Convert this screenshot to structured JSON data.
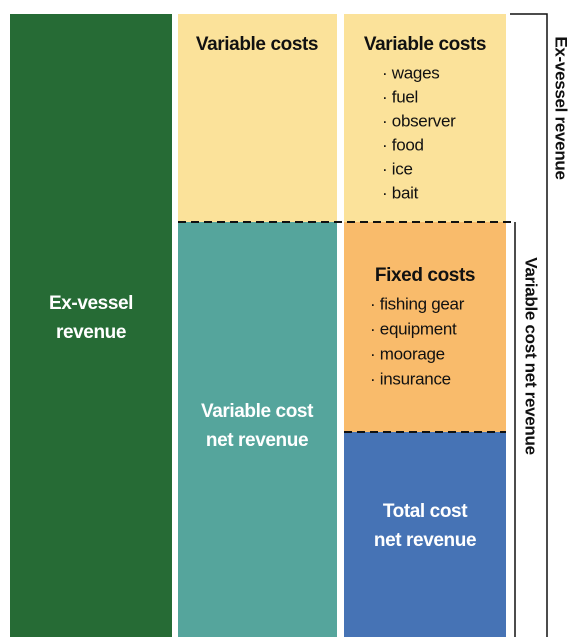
{
  "columns": [
    {
      "blocks": [
        {
          "title": [
            "Ex-vessel",
            "revenue"
          ]
        }
      ]
    },
    {
      "blocks": [
        {
          "title": [
            "Variable costs"
          ]
        },
        {
          "title": [
            "Variable cost",
            "net revenue"
          ]
        }
      ]
    },
    {
      "blocks": [
        {
          "title": [
            "Variable costs"
          ],
          "items": [
            "· wages",
            "· fuel",
            "· observer",
            "· food",
            "· ice",
            "· bait"
          ]
        },
        {
          "title": [
            "Fixed costs"
          ],
          "items": [
            "· fishing gear",
            "· equipment",
            "· moorage",
            "· insurance"
          ]
        },
        {
          "title": [
            "Total cost",
            "net revenue"
          ]
        }
      ]
    }
  ],
  "brackets": [
    {
      "label": "Ex-vessel revenue"
    },
    {
      "label": "Variable cost net revenue"
    }
  ]
}
